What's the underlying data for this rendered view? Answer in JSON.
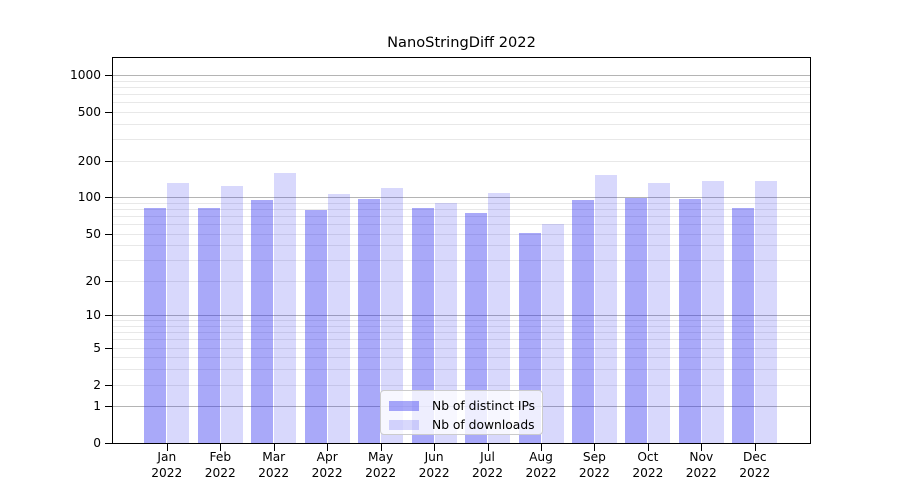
{
  "title": "NanoStringDiff 2022",
  "chart_data": {
    "type": "bar",
    "title": "NanoStringDiff 2022",
    "categories": [
      "Jan",
      "Feb",
      "Mar",
      "Apr",
      "May",
      "Jun",
      "Jul",
      "Aug",
      "Sep",
      "Oct",
      "Nov",
      "Dec"
    ],
    "year": "2022",
    "series": [
      {
        "name": "Nb of distinct IPs",
        "color": "rgba(40,40,240,0.40)",
        "values": [
          82,
          82,
          95,
          78,
          96,
          81,
          74,
          51,
          95,
          98,
          97,
          82
        ]
      },
      {
        "name": "Nb of downloads",
        "color": "rgba(40,40,240,0.18)",
        "values": [
          130,
          123,
          158,
          106,
          120,
          90,
          109,
          60,
          153,
          130,
          135,
          135
        ]
      }
    ],
    "yscale": "log1p",
    "yticks": [
      0,
      1,
      2,
      5,
      10,
      20,
      50,
      100,
      200,
      500,
      1000
    ],
    "ylim": [
      0,
      1375
    ],
    "grid": true,
    "legend_position": "lower center",
    "colors": {
      "major_grid": "#b4b4b4",
      "minor_grid": "#e8e8e8",
      "axis": "#000000",
      "background": "#ffffff"
    }
  }
}
